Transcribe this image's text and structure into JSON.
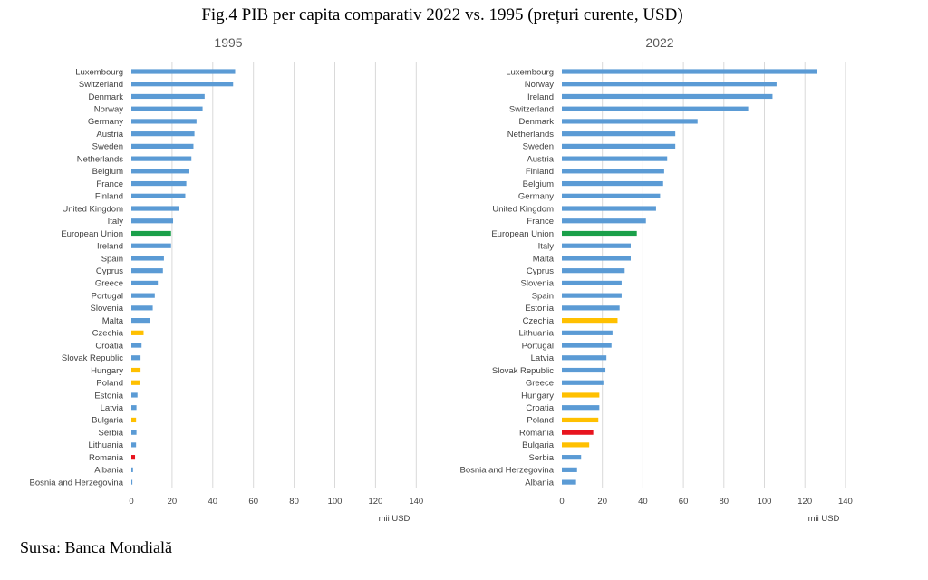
{
  "figure": {
    "title": "Fig.4 PIB per capita comparativ 2022 vs. 1995 (prețuri curente, USD)",
    "source": "Sursa: Banca Mondială"
  },
  "colors": {
    "default": "#5b9bd5",
    "eu": "#1aa04a",
    "highlight": "#ffc000",
    "romania": "#e8141e",
    "grid": "#d9d9d9"
  },
  "chart_data": [
    {
      "type": "bar",
      "orientation": "horizontal",
      "title": "1995",
      "xlabel": "mii USD",
      "ylabel": "",
      "xlim": [
        0,
        140
      ],
      "xticks": [
        0,
        20,
        40,
        60,
        80,
        100,
        120,
        140
      ],
      "grid": true,
      "legend": "none",
      "categories": [
        "Luxembourg",
        "Switzerland",
        "Denmark",
        "Norway",
        "Germany",
        "Austria",
        "Sweden",
        "Netherlands",
        "Belgium",
        "France",
        "Finland",
        "United Kingdom",
        "Italy",
        "European Union",
        "Ireland",
        "Spain",
        "Cyprus",
        "Greece",
        "Portugal",
        "Slovenia",
        "Malta",
        "Czechia",
        "Croatia",
        "Slovak Republic",
        "Hungary",
        "Poland",
        "Estonia",
        "Latvia",
        "Bulgaria",
        "Serbia",
        "Lithuania",
        "Romania",
        "Albania",
        "Bosnia and Herzegovina"
      ],
      "values": [
        51,
        50,
        36,
        35,
        32,
        31,
        30.5,
        29.5,
        28.5,
        27,
        26.5,
        23.5,
        20.5,
        19.5,
        19.5,
        16,
        15.5,
        13,
        11.5,
        10.5,
        9,
        6,
        5,
        4.5,
        4.5,
        4,
        3,
        2.5,
        2.3,
        2.5,
        2.3,
        1.8,
        0.8,
        0.5
      ],
      "bar_colors": [
        "default",
        "default",
        "default",
        "default",
        "default",
        "default",
        "default",
        "default",
        "default",
        "default",
        "default",
        "default",
        "default",
        "eu",
        "default",
        "default",
        "default",
        "default",
        "default",
        "default",
        "default",
        "highlight",
        "default",
        "default",
        "highlight",
        "highlight",
        "default",
        "default",
        "highlight",
        "default",
        "default",
        "romania",
        "default",
        "default"
      ]
    },
    {
      "type": "bar",
      "orientation": "horizontal",
      "title": "2022",
      "xlabel": "mii USD",
      "ylabel": "",
      "xlim": [
        0,
        140
      ],
      "xticks": [
        0,
        20,
        40,
        60,
        80,
        100,
        120,
        140
      ],
      "grid": true,
      "legend": "none",
      "categories": [
        "Luxembourg",
        "Norway",
        "Ireland",
        "Switzerland",
        "Denmark",
        "Netherlands",
        "Sweden",
        "Austria",
        "Finland",
        "Belgium",
        "Germany",
        "United Kingdom",
        "France",
        "European Union",
        "Italy",
        "Malta",
        "Cyprus",
        "Slovenia",
        "Spain",
        "Estonia",
        "Czechia",
        "Lithuania",
        "Portugal",
        "Latvia",
        "Slovak Republic",
        "Greece",
        "Hungary",
        "Croatia",
        "Poland",
        "Romania",
        "Bulgaria",
        "Serbia",
        "Bosnia and Herzegovina",
        "Albania"
      ],
      "values": [
        126,
        106,
        104,
        92,
        67,
        56,
        56,
        52,
        50.5,
        50,
        48.5,
        46.5,
        41.5,
        37,
        34,
        34,
        31,
        29.5,
        29.5,
        28.5,
        27.5,
        25,
        24.5,
        22,
        21.5,
        20.5,
        18.5,
        18.5,
        18,
        15.5,
        13.5,
        9.5,
        7.5,
        7
      ],
      "bar_colors": [
        "default",
        "default",
        "default",
        "default",
        "default",
        "default",
        "default",
        "default",
        "default",
        "default",
        "default",
        "default",
        "default",
        "eu",
        "default",
        "default",
        "default",
        "default",
        "default",
        "default",
        "highlight",
        "default",
        "default",
        "default",
        "default",
        "default",
        "highlight",
        "default",
        "highlight",
        "romania",
        "highlight",
        "default",
        "default",
        "default"
      ]
    }
  ]
}
